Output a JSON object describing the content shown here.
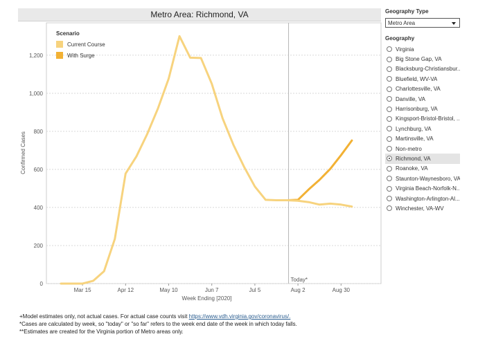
{
  "chart_title": "Metro Area: Richmond, VA",
  "chart_data": {
    "type": "line",
    "xlabel": "Week Ending [2020]",
    "ylabel": "Confirmed Cases",
    "ylim": [
      0,
      1370
    ],
    "yticks": [
      0,
      200,
      400,
      600,
      800,
      1000,
      1200
    ],
    "ytick_labels": [
      "0",
      "200",
      "400",
      "600",
      "800",
      "1,000",
      "1,200"
    ],
    "x_tick_labels": [
      "Mar 15",
      "Apr 12",
      "May 10",
      "Jun 7",
      "Jul 5",
      "Aug 2",
      "Aug 30"
    ],
    "today_label": "Today*",
    "legend_title": "Scenario",
    "legend_placement": "top-left",
    "series": [
      {
        "name": "Current Course",
        "color": "#f7d37e",
        "weeks": [
          "Mar 1",
          "Mar 8",
          "Mar 15",
          "Mar 22",
          "Mar 29",
          "Apr 5",
          "Apr 12",
          "Apr 19",
          "Apr 26",
          "May 3",
          "May 10",
          "May 17",
          "May 24",
          "May 31",
          "Jun 7",
          "Jun 14",
          "Jun 21",
          "Jun 28",
          "Jul 5",
          "Jul 12",
          "Jul 19",
          "Jul 26",
          "Aug 2",
          "Aug 9",
          "Aug 16",
          "Aug 23",
          "Aug 30",
          "Sep 6"
        ],
        "values": [
          0,
          0,
          0,
          15,
          65,
          235,
          578,
          668,
          785,
          920,
          1077,
          1300,
          1187,
          1185,
          1050,
          868,
          730,
          613,
          510,
          440,
          438,
          438,
          435,
          428,
          415,
          420,
          415,
          405
        ]
      },
      {
        "name": "With Surge",
        "color": "#f2b134",
        "weeks": [
          "Jul 26",
          "Aug 2",
          "Aug 9",
          "Aug 16",
          "Aug 23",
          "Aug 30",
          "Sep 6"
        ],
        "values": [
          438,
          440,
          495,
          545,
          603,
          675,
          752
        ]
      }
    ]
  },
  "panel": {
    "geography_type_heading": "Geography Type",
    "geography_type_value": "Metro Area",
    "geography_heading": "Geography",
    "items": [
      {
        "label": "Virginia",
        "selected": false
      },
      {
        "label": "Big Stone Gap, VA",
        "selected": false
      },
      {
        "label": "Blacksburg-Christiansbur...",
        "selected": false
      },
      {
        "label": "Bluefield, WV-VA",
        "selected": false
      },
      {
        "label": "Charlottesville, VA",
        "selected": false
      },
      {
        "label": "Danville, VA",
        "selected": false
      },
      {
        "label": "Harrisonburg, VA",
        "selected": false
      },
      {
        "label": "Kingsport-Bristol-Bristol, ...",
        "selected": false
      },
      {
        "label": "Lynchburg, VA",
        "selected": false
      },
      {
        "label": "Martinsville, VA",
        "selected": false
      },
      {
        "label": "Non-metro",
        "selected": false
      },
      {
        "label": "Richmond, VA",
        "selected": true
      },
      {
        "label": "Roanoke, VA",
        "selected": false
      },
      {
        "label": "Staunton-Waynesboro, VA",
        "selected": false
      },
      {
        "label": "Virginia Beach-Norfolk-N...",
        "selected": false
      },
      {
        "label": "Washington-Arlington-Al...",
        "selected": false
      },
      {
        "label": "Winchester, VA-WV",
        "selected": false
      }
    ]
  },
  "footnotes": {
    "line1_prefix": "+Model estimates only, not actual cases. For actual case counts visit ",
    "line1_link": "https://www.vdh.virginia.gov/coronavirus/.",
    "line2": "*Cases are calculated by week, so \"today\" or \"so far\" refers to the week end date of the week in which today falls.",
    "line3": "**Estimates are created for the Virginia portion of Metro areas only."
  }
}
